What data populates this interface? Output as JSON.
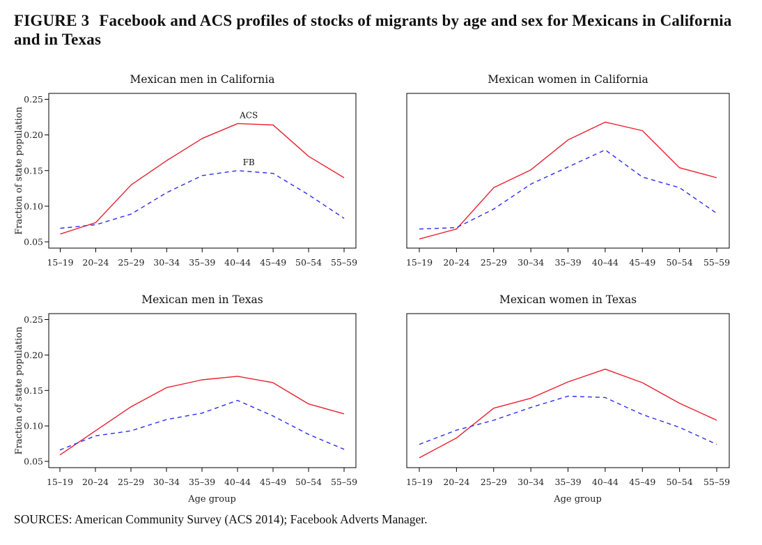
{
  "figure": {
    "number": "FIGURE 3",
    "title": "Facebook and ACS profiles of stocks of migrants by age and sex for Mexicans in California and in Texas",
    "sources": "SOURCES: American Community Survey (ACS 2014); Facebook Adverts Manager."
  },
  "chart_data": [
    {
      "type": "line",
      "title": "Mexican men in California",
      "xlabel": "",
      "ylabel": "Fraction of state population",
      "categories": [
        "15–19",
        "20–24",
        "25–29",
        "30–34",
        "35–39",
        "40–44",
        "45–49",
        "50–54",
        "55–59"
      ],
      "ylim": [
        0.045,
        0.255
      ],
      "yticks": [
        "0.05",
        "0.10",
        "0.15",
        "0.20",
        "0.25"
      ],
      "show_yaxis_labels": true,
      "grid": false,
      "annotations": [
        {
          "text": "ACS",
          "series": "ACS",
          "category": "40–44"
        },
        {
          "text": "FB",
          "series": "FB",
          "category": "40–44"
        }
      ],
      "series": [
        {
          "name": "ACS",
          "style": "solid",
          "color": "#e8202e",
          "values": [
            0.061,
            0.077,
            0.13,
            0.164,
            0.195,
            0.216,
            0.214,
            0.17,
            0.14
          ]
        },
        {
          "name": "FB",
          "style": "dashed",
          "color": "#2b2bf0",
          "values": [
            0.069,
            0.074,
            0.089,
            0.119,
            0.143,
            0.15,
            0.146,
            0.116,
            0.083
          ]
        }
      ]
    },
    {
      "type": "line",
      "title": "Mexican women in California",
      "xlabel": "",
      "ylabel": "",
      "categories": [
        "15–19",
        "20–24",
        "25–29",
        "30–34",
        "35–39",
        "40–44",
        "45–49",
        "50–54",
        "55–59"
      ],
      "ylim": [
        0.045,
        0.255
      ],
      "yticks": [],
      "show_yaxis_labels": false,
      "grid": false,
      "annotations": [],
      "series": [
        {
          "name": "ACS",
          "style": "solid",
          "color": "#e8202e",
          "values": [
            0.054,
            0.068,
            0.126,
            0.151,
            0.193,
            0.218,
            0.206,
            0.154,
            0.14
          ]
        },
        {
          "name": "FB",
          "style": "dashed",
          "color": "#2b2bf0",
          "values": [
            0.068,
            0.07,
            0.096,
            0.131,
            0.155,
            0.179,
            0.141,
            0.126,
            0.09
          ]
        }
      ]
    },
    {
      "type": "line",
      "title": "Mexican men in Texas",
      "xlabel": "Age group",
      "ylabel": "Fraction of state population",
      "categories": [
        "15–19",
        "20–24",
        "25–29",
        "30–34",
        "35–39",
        "40–44",
        "45–49",
        "50–54",
        "55–59"
      ],
      "ylim": [
        0.045,
        0.255
      ],
      "yticks": [
        "0.05",
        "0.10",
        "0.15",
        "0.20",
        "0.25"
      ],
      "show_yaxis_labels": true,
      "grid": false,
      "annotations": [],
      "series": [
        {
          "name": "ACS",
          "style": "solid",
          "color": "#e8202e",
          "values": [
            0.059,
            0.093,
            0.127,
            0.154,
            0.165,
            0.17,
            0.161,
            0.131,
            0.117
          ]
        },
        {
          "name": "FB",
          "style": "dashed",
          "color": "#2b2bf0",
          "values": [
            0.066,
            0.086,
            0.093,
            0.109,
            0.118,
            0.136,
            0.114,
            0.088,
            0.067
          ]
        }
      ]
    },
    {
      "type": "line",
      "title": "Mexican women in Texas",
      "xlabel": "Age group",
      "ylabel": "",
      "categories": [
        "15–19",
        "20–24",
        "25–29",
        "30–34",
        "35–39",
        "40–44",
        "45–49",
        "50–54",
        "55–59"
      ],
      "ylim": [
        0.045,
        0.255
      ],
      "yticks": [],
      "show_yaxis_labels": false,
      "grid": false,
      "annotations": [],
      "series": [
        {
          "name": "ACS",
          "style": "solid",
          "color": "#e8202e",
          "values": [
            0.055,
            0.083,
            0.125,
            0.139,
            0.162,
            0.18,
            0.161,
            0.132,
            0.108
          ]
        },
        {
          "name": "FB",
          "style": "dashed",
          "color": "#2b2bf0",
          "values": [
            0.074,
            0.094,
            0.108,
            0.126,
            0.142,
            0.14,
            0.116,
            0.098,
            0.074
          ]
        }
      ]
    }
  ]
}
